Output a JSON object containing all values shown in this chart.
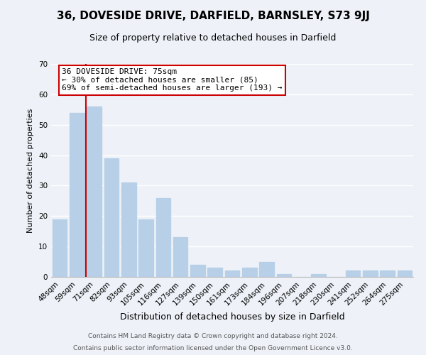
{
  "title1": "36, DOVESIDE DRIVE, DARFIELD, BARNSLEY, S73 9JJ",
  "title2": "Size of property relative to detached houses in Darfield",
  "xlabel": "Distribution of detached houses by size in Darfield",
  "ylabel": "Number of detached properties",
  "bar_labels": [
    "48sqm",
    "59sqm",
    "71sqm",
    "82sqm",
    "93sqm",
    "105sqm",
    "116sqm",
    "127sqm",
    "139sqm",
    "150sqm",
    "161sqm",
    "173sqm",
    "184sqm",
    "196sqm",
    "207sqm",
    "218sqm",
    "230sqm",
    "241sqm",
    "252sqm",
    "264sqm",
    "275sqm"
  ],
  "bar_values": [
    19,
    54,
    56,
    39,
    31,
    19,
    26,
    13,
    4,
    3,
    2,
    3,
    5,
    1,
    0,
    1,
    0,
    2,
    2,
    2,
    2
  ],
  "bar_color": "#b8cfe8",
  "vline_color": "#cc0000",
  "vline_x_index": 2,
  "ylim": [
    0,
    70
  ],
  "yticks": [
    0,
    10,
    20,
    30,
    40,
    50,
    60,
    70
  ],
  "annotation_text": "36 DOVESIDE DRIVE: 75sqm\n← 30% of detached houses are smaller (85)\n69% of semi-detached houses are larger (193) →",
  "annotation_box_color": "#ffffff",
  "annotation_box_edge": "#cc0000",
  "footer1": "Contains HM Land Registry data © Crown copyright and database right 2024.",
  "footer2": "Contains public sector information licensed under the Open Government Licence v3.0.",
  "background_color": "#eef2f8",
  "grid_color": "#ffffff",
  "title1_fontsize": 11,
  "title2_fontsize": 9,
  "xlabel_fontsize": 9,
  "ylabel_fontsize": 8,
  "tick_fontsize": 7.5,
  "annot_fontsize": 8,
  "footer_fontsize": 6.5
}
